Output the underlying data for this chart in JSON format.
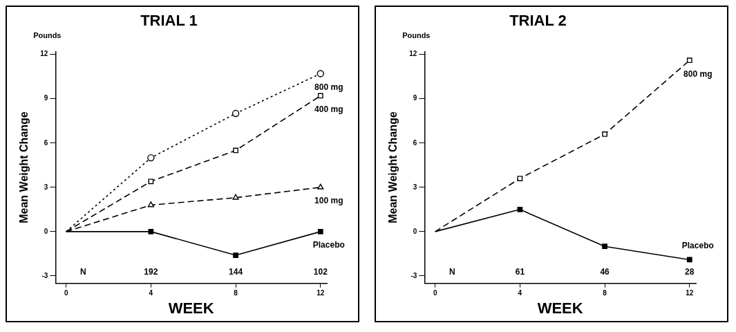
{
  "chart_data": [
    {
      "type": "line",
      "title": "TRIAL 1",
      "xlabel": "WEEK",
      "ylabel": "Mean Weight Change",
      "x": [
        0,
        4,
        8,
        12
      ],
      "xlim": [
        -0.5,
        12.3
      ],
      "xticks": [
        0,
        4,
        8,
        12
      ],
      "ylim": [
        -3.5,
        12.2
      ],
      "yticks": [
        -3,
        0,
        3,
        6,
        9,
        12
      ],
      "grid": false,
      "legend": false,
      "series": [
        {
          "name": "800 mg",
          "color": "#000000",
          "values": [
            0,
            5.0,
            8.0,
            10.7
          ],
          "marker": "circle",
          "line_style": "dotted"
        },
        {
          "name": "400 mg",
          "color": "#000000",
          "values": [
            0,
            3.4,
            5.5,
            9.2
          ],
          "marker": "square",
          "line_style": "dashed"
        },
        {
          "name": "100 mg",
          "color": "#000000",
          "values": [
            0,
            1.8,
            2.3,
            3.0
          ],
          "marker": "triangle",
          "line_style": "dashed"
        },
        {
          "name": "Placebo",
          "color": "#000000",
          "values": [
            0,
            0,
            -1.6,
            0
          ],
          "marker": "square",
          "line_style": "solid"
        }
      ],
      "annotations": [
        "Pounds",
        "N",
        "192",
        "144",
        "102"
      ]
    },
    {
      "type": "line",
      "title": "TRIAL 2",
      "xlabel": "WEEK",
      "ylabel": "Mean Weight Change",
      "x": [
        0,
        4,
        8,
        12
      ],
      "xlim": [
        -0.5,
        12.3
      ],
      "xticks": [
        0,
        4,
        8,
        12
      ],
      "ylim": [
        -3.5,
        12.2
      ],
      "yticks": [
        -3,
        0,
        3,
        6,
        9,
        12
      ],
      "grid": false,
      "legend": false,
      "series": [
        {
          "name": "800 mg",
          "color": "#000000",
          "values": [
            0,
            3.6,
            6.6,
            11.6
          ],
          "marker": "square",
          "line_style": "dashed"
        },
        {
          "name": "Placebo",
          "color": "#000000",
          "values": [
            0,
            1.5,
            -1.0,
            -1.9
          ],
          "marker": "square",
          "line_style": "solid"
        }
      ],
      "annotations": [
        "Pounds",
        "N",
        "61",
        "46",
        "28"
      ]
    }
  ]
}
